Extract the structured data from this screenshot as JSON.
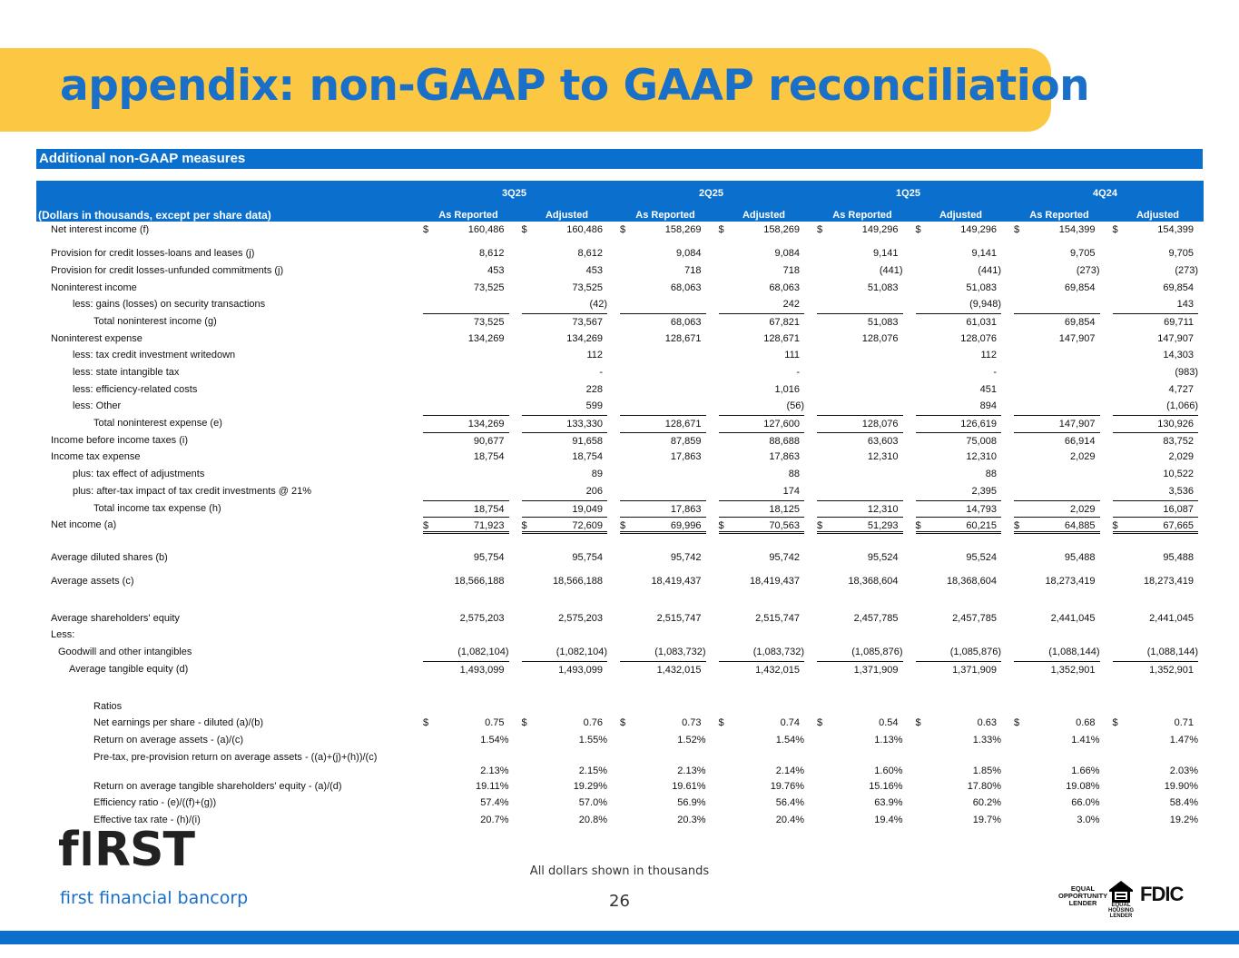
{
  "title": "appendix: non-GAAP to GAAP reconciliation",
  "section_title": "Additional non-GAAP measures",
  "table": {
    "units_label": "(Dollars in thousands, except per share data)",
    "periods": [
      "3Q25",
      "2Q25",
      "1Q25",
      "4Q24"
    ],
    "sub_columns": [
      "As Reported",
      "Adjusted",
      "As Reported",
      "Adjusted",
      "As Reported",
      "Adjusted",
      "As Reported",
      "Adjusted"
    ],
    "currency_symbol": "$",
    "rows": [
      {
        "label": "Net interest income (f)",
        "indent": "i0",
        "dollar": true,
        "values": [
          "160,486",
          "160,486",
          "158,269",
          "158,269",
          "149,296",
          "149,296",
          "154,399",
          "154,399"
        ]
      },
      {
        "spacer": "sp"
      },
      {
        "label": "Provision for credit losses-loans and leases (j)",
        "indent": "i0",
        "values": [
          "8,612",
          "8,612",
          "9,084",
          "9,084",
          "9,141",
          "9,141",
          "9,705",
          "9,705"
        ]
      },
      {
        "label": "Provision for credit losses-unfunded commitments (j)",
        "indent": "i0",
        "values": [
          "453",
          "453",
          "718",
          "718",
          "(441)",
          "(441)",
          "(273)",
          "(273)"
        ]
      },
      {
        "label": "Noninterest income",
        "indent": "i0",
        "values": [
          "73,525",
          "73,525",
          "68,063",
          "68,063",
          "51,083",
          "51,083",
          "69,854",
          "69,854"
        ]
      },
      {
        "label": "less: gains (losses) on security transactions",
        "indent": "i1",
        "values": [
          "",
          "(42)",
          "",
          "242",
          "",
          "(9,948)",
          "",
          "143"
        ]
      },
      {
        "label": "Total noninterest income (g)",
        "indent": "i2",
        "top": true,
        "values": [
          "73,525",
          "73,567",
          "68,063",
          "67,821",
          "51,083",
          "61,031",
          "69,854",
          "69,711"
        ]
      },
      {
        "label": "Noninterest expense",
        "indent": "i0",
        "values": [
          "134,269",
          "134,269",
          "128,671",
          "128,671",
          "128,076",
          "128,076",
          "147,907",
          "147,907"
        ]
      },
      {
        "label": "less: tax credit investment writedown",
        "indent": "i1",
        "values": [
          "",
          "112",
          "",
          "111",
          "",
          "112",
          "",
          "14,303"
        ]
      },
      {
        "label": "less: state intangible tax",
        "indent": "i1",
        "values": [
          "",
          "-",
          "",
          "-",
          "",
          "-",
          "",
          "(983)"
        ]
      },
      {
        "label": "less: efficiency-related costs",
        "indent": "i1",
        "values": [
          "",
          "228",
          "",
          "1,016",
          "",
          "451",
          "",
          "4,727"
        ]
      },
      {
        "label": "less: Other",
        "indent": "i1",
        "values": [
          "",
          "599",
          "",
          "(56)",
          "",
          "894",
          "",
          "(1,066)"
        ]
      },
      {
        "label": "Total noninterest expense (e)",
        "indent": "i2",
        "top": true,
        "values": [
          "134,269",
          "133,330",
          "128,671",
          "127,600",
          "128,076",
          "126,619",
          "147,907",
          "130,926"
        ]
      },
      {
        "label": "Income before income taxes (i)",
        "indent": "i0",
        "top": true,
        "values": [
          "90,677",
          "91,658",
          "87,859",
          "88,688",
          "63,603",
          "75,008",
          "66,914",
          "83,752"
        ]
      },
      {
        "label": "Income tax expense",
        "indent": "i0",
        "values": [
          "18,754",
          "18,754",
          "17,863",
          "17,863",
          "12,310",
          "12,310",
          "2,029",
          "2,029"
        ]
      },
      {
        "label": "plus: tax effect of adjustments",
        "indent": "i1",
        "values": [
          "",
          "89",
          "",
          "88",
          "",
          "88",
          "",
          "10,522"
        ]
      },
      {
        "label": "plus: after-tax impact of tax credit investments  @ 21%",
        "indent": "i1",
        "values": [
          "",
          "206",
          "",
          "174",
          "",
          "2,395",
          "",
          "3,536"
        ]
      },
      {
        "label": "Total income tax expense  (h)",
        "indent": "i2",
        "top": true,
        "values": [
          "18,754",
          "19,049",
          "17,863",
          "18,125",
          "12,310",
          "14,793",
          "2,029",
          "16,087"
        ]
      },
      {
        "label": "Net income (a)",
        "indent": "i0",
        "top": true,
        "dbl": true,
        "dollar": true,
        "values": [
          "71,923",
          "72,609",
          "69,996",
          "70,563",
          "51,293",
          "60,215",
          "64,885",
          "67,665"
        ]
      },
      {
        "spacer": "sp2"
      },
      {
        "label": "Average diluted shares (b)",
        "indent": "i0",
        "values": [
          "95,754",
          "95,754",
          "95,742",
          "95,742",
          "95,524",
          "95,524",
          "95,488",
          "95,488"
        ]
      },
      {
        "spacer": "sp"
      },
      {
        "label": "Average assets (c)",
        "indent": "i0",
        "values": [
          "18,566,188",
          "18,566,188",
          "18,419,437",
          "18,419,437",
          "18,368,604",
          "18,368,604",
          "18,273,419",
          "18,273,419"
        ]
      },
      {
        "spacer": "sp3"
      },
      {
        "label": "Average shareholders' equity",
        "indent": "i0",
        "values": [
          "2,575,203",
          "2,575,203",
          "2,515,747",
          "2,515,747",
          "2,457,785",
          "2,457,785",
          "2,441,045",
          "2,441,045"
        ]
      },
      {
        "label": "Less:",
        "indent": "i0",
        "values": [
          "",
          "",
          "",
          "",
          "",
          "",
          "",
          ""
        ]
      },
      {
        "label": "Goodwill and other intangibles",
        "indent": "ig",
        "values": [
          "(1,082,104)",
          "(1,082,104)",
          "(1,083,732)",
          "(1,083,732)",
          "(1,085,876)",
          "(1,085,876)",
          "(1,088,144)",
          "(1,088,144)"
        ]
      },
      {
        "label": "Average tangible equity (d)",
        "indent": "it",
        "top": true,
        "values": [
          "1,493,099",
          "1,493,099",
          "1,432,015",
          "1,432,015",
          "1,371,909",
          "1,371,909",
          "1,352,901",
          "1,352,901"
        ]
      },
      {
        "spacer": "sp3"
      },
      {
        "label": "Ratios",
        "indent": "i2",
        "values": [
          "",
          "",
          "",
          "",
          "",
          "",
          "",
          ""
        ]
      },
      {
        "label": "Net earnings per share - diluted (a)/(b)",
        "indent": "i2",
        "dollar": true,
        "values": [
          "0.75",
          "0.76",
          "0.73",
          "0.74",
          "0.54",
          "0.63",
          "0.68",
          "0.71"
        ]
      },
      {
        "label": "Return on average assets - (a)/(c)",
        "indent": "i2",
        "values": [
          "1.54%",
          "1.55%",
          "1.52%",
          "1.54%",
          "1.13%",
          "1.33%",
          "1.41%",
          "1.47%"
        ]
      },
      {
        "label": "Pre-tax, pre-provision return on average assets - ((a)+(j)+(h))/(c)",
        "indent": "i2",
        "two": true,
        "values": [
          "2.13%",
          "2.15%",
          "2.13%",
          "2.14%",
          "1.60%",
          "1.85%",
          "1.66%",
          "2.03%"
        ]
      },
      {
        "label": "Return on average tangible shareholders' equity - (a)/(d)",
        "indent": "i2",
        "values": [
          "19.11%",
          "19.29%",
          "19.61%",
          "19.76%",
          "15.16%",
          "17.80%",
          "19.08%",
          "19.90%"
        ]
      },
      {
        "label": "Efficiency ratio - (e)/((f)+(g))",
        "indent": "i2",
        "values": [
          "57.4%",
          "57.0%",
          "56.9%",
          "56.4%",
          "63.9%",
          "60.2%",
          "66.0%",
          "58.4%"
        ]
      },
      {
        "label": "Effective tax rate - (h)/(i)",
        "indent": "i2",
        "values": [
          "20.7%",
          "20.8%",
          "20.3%",
          "20.4%",
          "19.4%",
          "19.7%",
          "3.0%",
          "19.2%"
        ]
      }
    ]
  },
  "footer": {
    "note": "All dollars shown in thousands",
    "page_number": "26",
    "logo_wordmark": "fIRST",
    "logo_tagline": "first financial bancorp",
    "badges": [
      "EQUAL OPPORTUNITY LENDER",
      "EQUAL HOUSING LENDER",
      "FDIC"
    ]
  },
  "colors": {
    "banner": "#fcc843",
    "accent_blue": "#0b6fce",
    "title_blue": "#1a6fc9"
  }
}
